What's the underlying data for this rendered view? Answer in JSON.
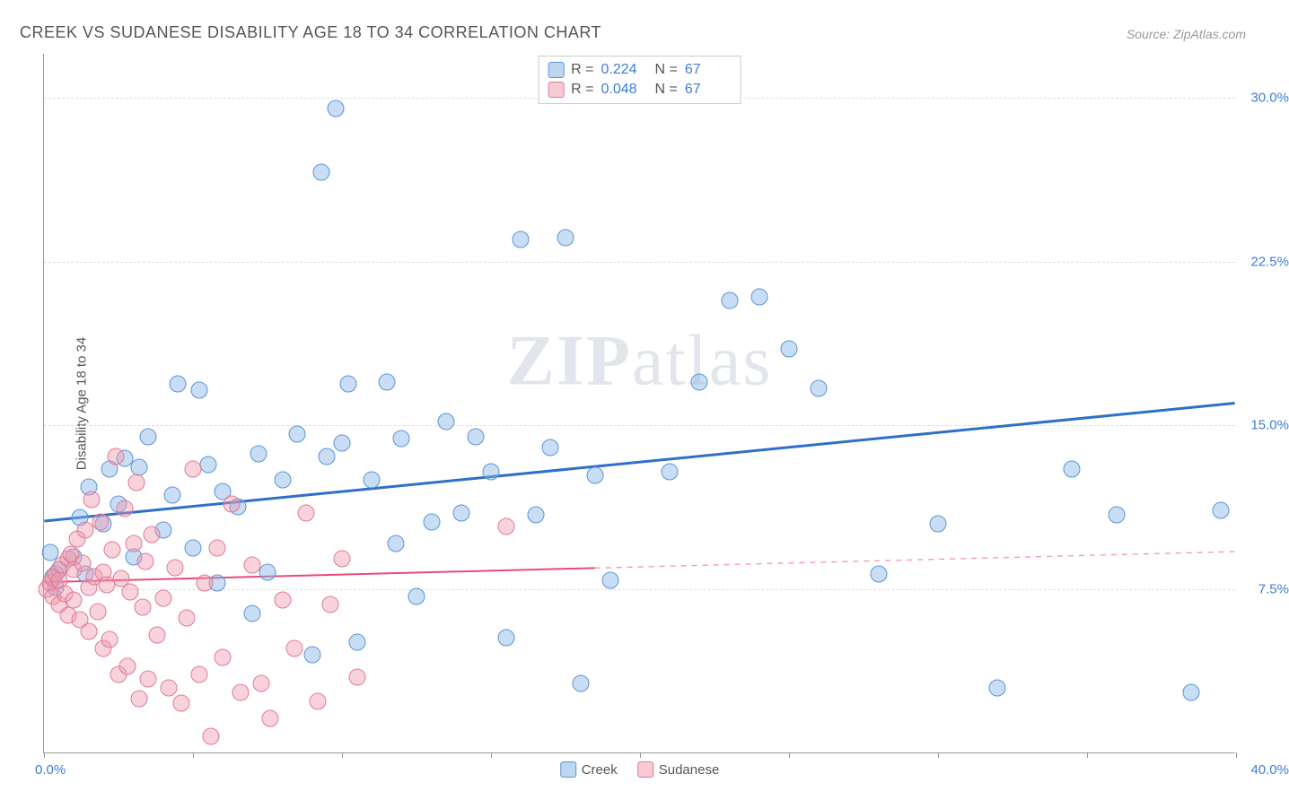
{
  "title": "CREEK VS SUDANESE DISABILITY AGE 18 TO 34 CORRELATION CHART",
  "source": "Source: ZipAtlas.com",
  "watermark_bold": "ZIP",
  "watermark_light": "atlas",
  "chart": {
    "type": "scatter",
    "y_axis_title": "Disability Age 18 to 34",
    "background_color": "#ffffff",
    "grid_color": "#dddddd",
    "axis_color": "#999999",
    "xlim": [
      0,
      40
    ],
    "ylim": [
      0,
      32
    ],
    "x_ticks": [
      0,
      5,
      10,
      15,
      20,
      25,
      30,
      35,
      40
    ],
    "x_tick_labels": {
      "min": "0.0%",
      "max": "40.0%"
    },
    "y_ticks": [
      7.5,
      15.0,
      22.5,
      30.0
    ],
    "y_tick_labels": [
      "7.5%",
      "15.0%",
      "22.5%",
      "30.0%"
    ],
    "y_tick_color": "#3b7dd8",
    "x_tick_color": "#3b7dd8",
    "point_radius": 9.5,
    "series": [
      {
        "name": "Creek",
        "fill_color": "rgba(136,180,230,0.45)",
        "stroke_color": "#5a96d6",
        "trend_color": "#2e6fc9",
        "trend_width": 3,
        "trend_dash_split_x": 40,
        "trend": {
          "x1": 0,
          "y1": 10.6,
          "x2": 40,
          "y2": 16.0
        },
        "R": "0.224",
        "N": "67",
        "points": [
          [
            0.2,
            9.2
          ],
          [
            0.3,
            8.1
          ],
          [
            0.4,
            7.6
          ],
          [
            0.5,
            8.4
          ],
          [
            1.0,
            9.0
          ],
          [
            1.2,
            10.8
          ],
          [
            1.4,
            8.2
          ],
          [
            1.5,
            12.2
          ],
          [
            2.0,
            10.5
          ],
          [
            2.2,
            13.0
          ],
          [
            2.5,
            11.4
          ],
          [
            2.7,
            13.5
          ],
          [
            3.0,
            9.0
          ],
          [
            3.2,
            13.1
          ],
          [
            3.5,
            14.5
          ],
          [
            4.0,
            10.2
          ],
          [
            4.3,
            11.8
          ],
          [
            4.5,
            16.9
          ],
          [
            5.0,
            9.4
          ],
          [
            5.2,
            16.6
          ],
          [
            5.5,
            13.2
          ],
          [
            5.8,
            7.8
          ],
          [
            6.0,
            12.0
          ],
          [
            6.5,
            11.3
          ],
          [
            7.0,
            6.4
          ],
          [
            7.2,
            13.7
          ],
          [
            7.5,
            8.3
          ],
          [
            8.0,
            12.5
          ],
          [
            8.5,
            14.6
          ],
          [
            9.0,
            4.5
          ],
          [
            9.3,
            26.6
          ],
          [
            9.5,
            13.6
          ],
          [
            9.8,
            29.5
          ],
          [
            10.0,
            14.2
          ],
          [
            10.2,
            16.9
          ],
          [
            10.5,
            5.1
          ],
          [
            11.0,
            12.5
          ],
          [
            11.5,
            17.0
          ],
          [
            11.8,
            9.6
          ],
          [
            12.0,
            14.4
          ],
          [
            12.5,
            7.2
          ],
          [
            13.0,
            10.6
          ],
          [
            13.5,
            15.2
          ],
          [
            14.0,
            11.0
          ],
          [
            14.5,
            14.5
          ],
          [
            15.0,
            12.9
          ],
          [
            15.5,
            5.3
          ],
          [
            16.0,
            23.5
          ],
          [
            16.5,
            10.9
          ],
          [
            17.0,
            14.0
          ],
          [
            17.5,
            23.6
          ],
          [
            18.0,
            3.2
          ],
          [
            18.5,
            12.7
          ],
          [
            19.0,
            7.9
          ],
          [
            21.0,
            12.9
          ],
          [
            22.0,
            17.0
          ],
          [
            23.0,
            20.7
          ],
          [
            24.0,
            20.9
          ],
          [
            25.0,
            18.5
          ],
          [
            26.0,
            16.7
          ],
          [
            28.0,
            8.2
          ],
          [
            30.0,
            10.5
          ],
          [
            32.0,
            3.0
          ],
          [
            34.5,
            13.0
          ],
          [
            36.0,
            10.9
          ],
          [
            38.5,
            2.8
          ],
          [
            39.5,
            11.1
          ]
        ]
      },
      {
        "name": "Sudanese",
        "fill_color": "rgba(240,150,170,0.42)",
        "stroke_color": "#e07a96",
        "trend_color": "#e84b77",
        "trend_width": 2,
        "trend_dash_split_x": 18.5,
        "trend": {
          "x1": 0,
          "y1": 7.8,
          "x2": 40,
          "y2": 9.2
        },
        "R": "0.048",
        "N": "67",
        "points": [
          [
            0.1,
            7.5
          ],
          [
            0.2,
            7.8
          ],
          [
            0.3,
            8.0
          ],
          [
            0.3,
            7.2
          ],
          [
            0.4,
            8.2
          ],
          [
            0.5,
            7.9
          ],
          [
            0.5,
            6.8
          ],
          [
            0.6,
            8.6
          ],
          [
            0.7,
            7.3
          ],
          [
            0.8,
            8.9
          ],
          [
            0.8,
            6.3
          ],
          [
            0.9,
            9.1
          ],
          [
            1.0,
            7.0
          ],
          [
            1.0,
            8.4
          ],
          [
            1.1,
            9.8
          ],
          [
            1.2,
            6.1
          ],
          [
            1.3,
            8.7
          ],
          [
            1.4,
            10.2
          ],
          [
            1.5,
            5.6
          ],
          [
            1.5,
            7.6
          ],
          [
            1.6,
            11.6
          ],
          [
            1.7,
            8.1
          ],
          [
            1.8,
            6.5
          ],
          [
            1.9,
            10.6
          ],
          [
            2.0,
            4.8
          ],
          [
            2.0,
            8.3
          ],
          [
            2.1,
            7.7
          ],
          [
            2.2,
            5.2
          ],
          [
            2.3,
            9.3
          ],
          [
            2.4,
            13.6
          ],
          [
            2.5,
            3.6
          ],
          [
            2.6,
            8.0
          ],
          [
            2.7,
            11.2
          ],
          [
            2.8,
            4.0
          ],
          [
            2.9,
            7.4
          ],
          [
            3.0,
            9.6
          ],
          [
            3.1,
            12.4
          ],
          [
            3.2,
            2.5
          ],
          [
            3.3,
            6.7
          ],
          [
            3.4,
            8.8
          ],
          [
            3.5,
            3.4
          ],
          [
            3.6,
            10.0
          ],
          [
            3.8,
            5.4
          ],
          [
            4.0,
            7.1
          ],
          [
            4.2,
            3.0
          ],
          [
            4.4,
            8.5
          ],
          [
            4.6,
            2.3
          ],
          [
            4.8,
            6.2
          ],
          [
            5.0,
            13.0
          ],
          [
            5.2,
            3.6
          ],
          [
            5.4,
            7.8
          ],
          [
            5.6,
            0.8
          ],
          [
            5.8,
            9.4
          ],
          [
            6.0,
            4.4
          ],
          [
            6.3,
            11.4
          ],
          [
            6.6,
            2.8
          ],
          [
            7.0,
            8.6
          ],
          [
            7.3,
            3.2
          ],
          [
            7.6,
            1.6
          ],
          [
            8.0,
            7.0
          ],
          [
            8.4,
            4.8
          ],
          [
            8.8,
            11.0
          ],
          [
            9.2,
            2.4
          ],
          [
            9.6,
            6.8
          ],
          [
            10.0,
            8.9
          ],
          [
            15.5,
            10.4
          ],
          [
            10.5,
            3.5
          ]
        ]
      }
    ],
    "stats_legend_label_R": "R =",
    "stats_legend_label_N": "N =",
    "bottom_legend": [
      "Creek",
      "Sudanese"
    ]
  }
}
